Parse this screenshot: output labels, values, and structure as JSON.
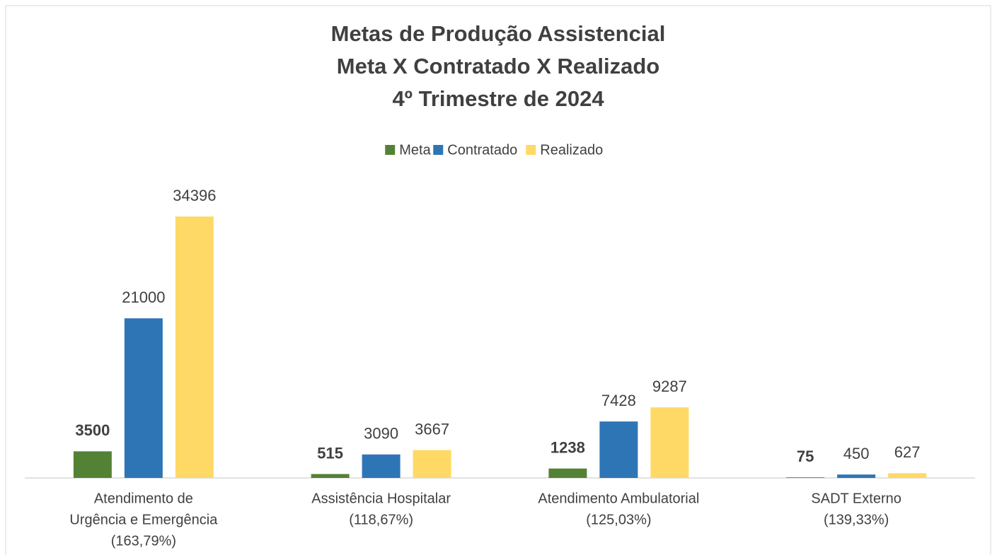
{
  "chart_data": {
    "type": "bar",
    "title": [
      "Metas de Produção Assistencial",
      "Meta X Contratado X Realizado",
      "4º Trimestre de 2024"
    ],
    "categories": [
      [
        "Atendimento de",
        "Urgência e Emergência",
        "(163,79%)"
      ],
      [
        "Assistência Hospitalar",
        "(118,67%)"
      ],
      [
        "Atendimento Ambulatorial",
        "(125,03%)"
      ],
      [
        "SADT Externo",
        "(139,33%)"
      ]
    ],
    "series": [
      {
        "name": "Meta",
        "color": "#548235",
        "bold_labels": true,
        "values": [
          3500,
          515,
          1238,
          75
        ]
      },
      {
        "name": "Contratado",
        "color": "#2e75b6",
        "values": [
          21000,
          3090,
          7428,
          450
        ]
      },
      {
        "name": "Realizado",
        "color": "#ffd966",
        "values": [
          34396,
          3667,
          9287,
          627
        ]
      }
    ],
    "ylim": [
      0,
      40000
    ],
    "legend": "top"
  }
}
